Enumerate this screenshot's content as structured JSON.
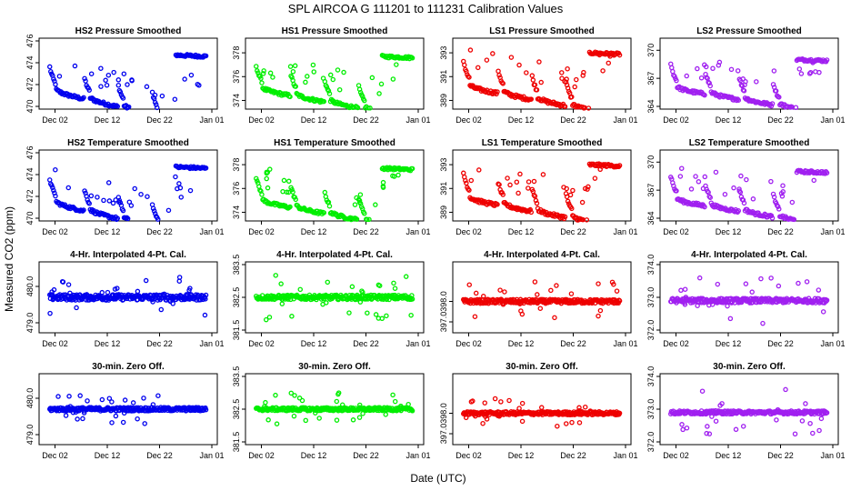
{
  "figure": {
    "title": "SPL   AIRCOA G   111201 to 111231   Calibration Values",
    "ylabel": "Measured CO2 (ppm)",
    "xlabel": "Date (UTC)"
  },
  "x_ticks": [
    "Dec 02",
    "Dec 12",
    "Dec 22",
    "Jan 01"
  ],
  "chart_data": [
    {
      "type": "scatter",
      "title": "HS2 Pressure Smoothed",
      "color": "#0000ee",
      "ylim": [
        470,
        476
      ],
      "yticks": [
        "470",
        "472",
        "474",
        "476"
      ],
      "pattern": "smooth",
      "base": 471.5,
      "amp": 2.2,
      "trend": -0.11,
      "offset_after": 3.2
    },
    {
      "type": "scatter",
      "title": "HS1 Pressure Smoothed",
      "color": "#00ee00",
      "ylim": [
        373.5,
        379
      ],
      "yticks": [
        "374",
        "376",
        "378"
      ],
      "pattern": "smooth",
      "base": 375.0,
      "amp": 2.0,
      "trend": -0.08,
      "offset_after": 2.7
    },
    {
      "type": "scatter",
      "title": "LS1 Pressure Smoothed",
      "color": "#ee0000",
      "ylim": [
        388.5,
        394
      ],
      "yticks": [
        "389",
        "391",
        "393"
      ],
      "pattern": "smooth",
      "base": 390.2,
      "amp": 2.2,
      "trend": -0.08,
      "offset_after": 2.8
    },
    {
      "type": "scatter",
      "title": "LS2 Pressure Smoothed",
      "color": "#a020f0",
      "ylim": [
        364,
        371
      ],
      "yticks": [
        "364",
        "367",
        "370"
      ],
      "pattern": "smooth",
      "base": 366.0,
      "amp": 2.6,
      "trend": -0.09,
      "offset_after": 3.0
    },
    {
      "type": "scatter",
      "title": "HS2 Temperature Smoothed",
      "color": "#0000ee",
      "ylim": [
        470,
        476
      ],
      "yticks": [
        "470",
        "472",
        "474",
        "476"
      ],
      "pattern": "smooth",
      "base": 471.5,
      "amp": 2.2,
      "trend": -0.11,
      "offset_after": 3.2
    },
    {
      "type": "scatter",
      "title": "HS1 Temperature Smoothed",
      "color": "#00ee00",
      "ylim": [
        373.5,
        379
      ],
      "yticks": [
        "374",
        "376",
        "378"
      ],
      "pattern": "smooth",
      "base": 375.0,
      "amp": 2.0,
      "trend": -0.08,
      "offset_after": 2.7
    },
    {
      "type": "scatter",
      "title": "LS1 Temperature Smoothed",
      "color": "#ee0000",
      "ylim": [
        388.5,
        394
      ],
      "yticks": [
        "389",
        "391",
        "393"
      ],
      "pattern": "smooth",
      "base": 390.2,
      "amp": 2.2,
      "trend": -0.08,
      "offset_after": 2.8
    },
    {
      "type": "scatter",
      "title": "LS2 Temperature Smoothed",
      "color": "#a020f0",
      "ylim": [
        364,
        371
      ],
      "yticks": [
        "364",
        "367",
        "370"
      ],
      "pattern": "smooth",
      "base": 366.0,
      "amp": 2.6,
      "trend": -0.09,
      "offset_after": 3.0
    },
    {
      "type": "scatter",
      "title": "4-Hr. Interpolated 4-Pt. Cal.",
      "color": "#0000ee",
      "ylim": [
        478.8,
        480.6
      ],
      "yticks": [
        "479.0",
        "480.0"
      ],
      "pattern": "flat",
      "base": 479.7,
      "spread": 0.08,
      "outlier": 0.6
    },
    {
      "type": "scatter",
      "title": "4-Hr. Interpolated 4-Pt. Cal.",
      "color": "#00ee00",
      "ylim": [
        381.5,
        383.5
      ],
      "yticks": [
        "381.5",
        "382.5",
        "383.5"
      ],
      "pattern": "flat",
      "base": 382.5,
      "spread": 0.07,
      "outlier": 0.7
    },
    {
      "type": "scatter",
      "title": "4-Hr. Interpolated 4-Pt. Cal.",
      "color": "#ee0000",
      "ylim": [
        396.6,
        399.8
      ],
      "yticks": [
        "397.0",
        "398.0"
      ],
      "pattern": "flat",
      "base": 398.0,
      "spread": 0.1,
      "outlier": 1.0
    },
    {
      "type": "scatter",
      "title": "4-Hr. Interpolated 4-Pt. Cal.",
      "color": "#a020f0",
      "ylim": [
        372.0,
        374.0
      ],
      "yticks": [
        "372.0",
        "373.0",
        "374.0"
      ],
      "pattern": "flat",
      "base": 372.9,
      "spread": 0.07,
      "outlier": 0.7
    },
    {
      "type": "scatter",
      "title": "30-min. Zero Off.",
      "color": "#0000ee",
      "ylim": [
        478.8,
        480.6
      ],
      "yticks": [
        "479.0",
        "480.0"
      ],
      "pattern": "flat",
      "base": 479.7,
      "spread": 0.05,
      "outlier": 0.4
    },
    {
      "type": "scatter",
      "title": "30-min. Zero Off.",
      "color": "#00ee00",
      "ylim": [
        381.5,
        383.5
      ],
      "yticks": [
        "381.5",
        "382.5",
        "383.5"
      ],
      "pattern": "flat",
      "base": 382.5,
      "spread": 0.05,
      "outlier": 0.5
    },
    {
      "type": "scatter",
      "title": "30-min. Zero Off.",
      "color": "#ee0000",
      "ylim": [
        396.6,
        399.8
      ],
      "yticks": [
        "397.0",
        "398.0"
      ],
      "pattern": "flat",
      "base": 398.0,
      "spread": 0.08,
      "outlier": 0.8
    },
    {
      "type": "scatter",
      "title": "30-min. Zero Off.",
      "color": "#a020f0",
      "ylim": [
        372.0,
        374.0
      ],
      "yticks": [
        "372.0",
        "373.0",
        "374.0"
      ],
      "pattern": "flat",
      "base": 372.9,
      "spread": 0.05,
      "outlier": 0.7
    }
  ]
}
